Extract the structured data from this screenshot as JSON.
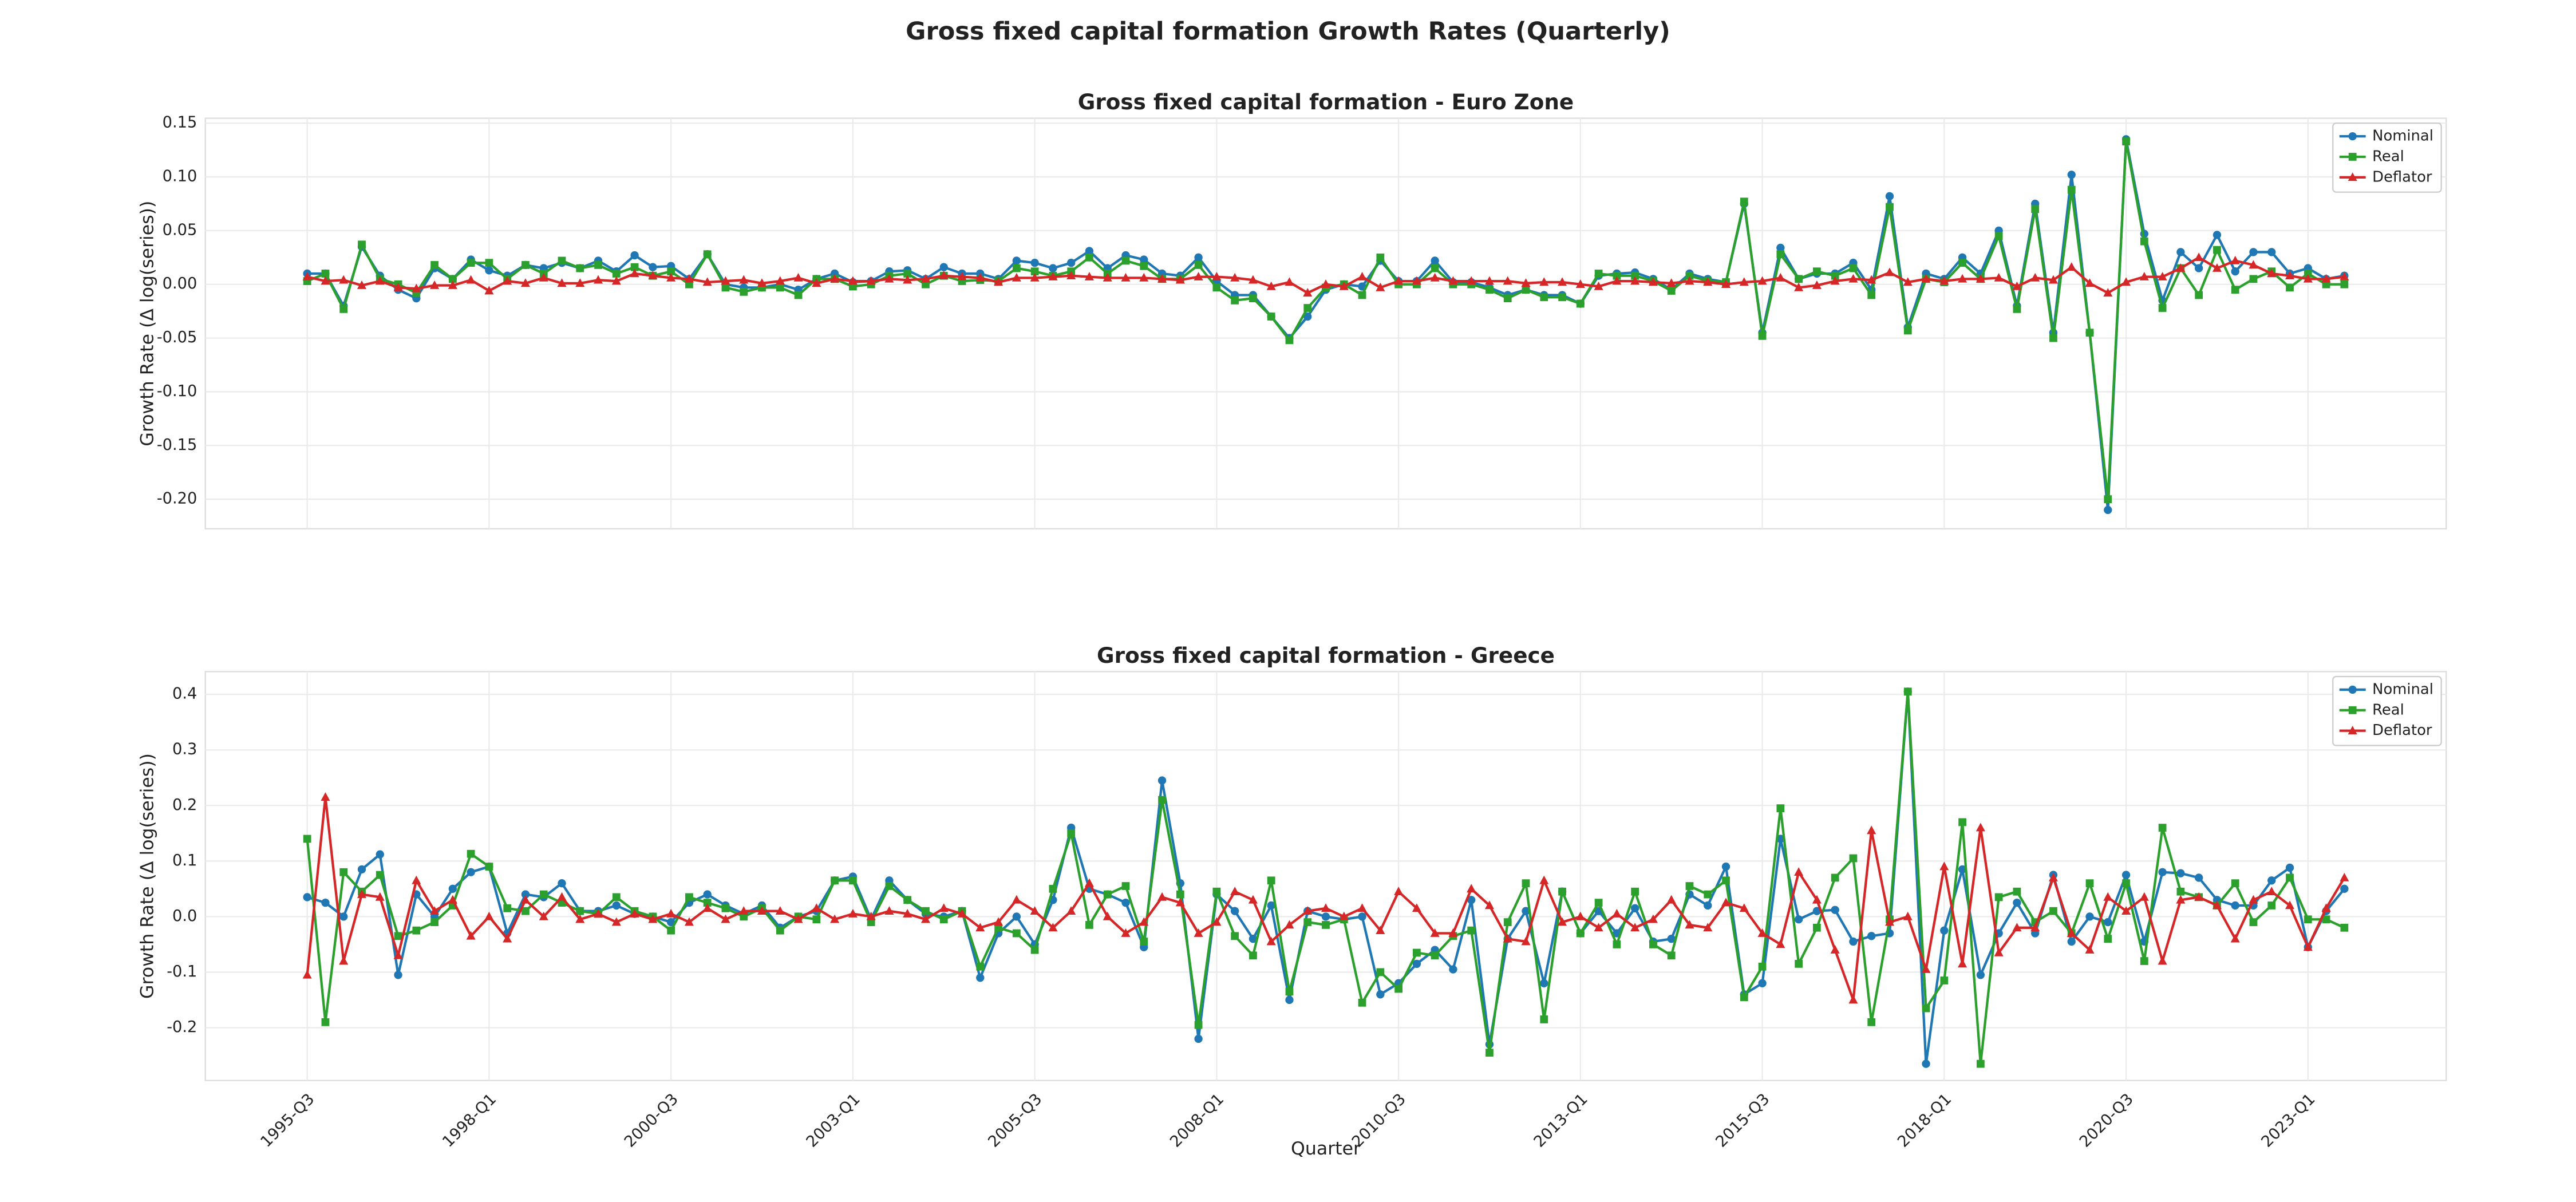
{
  "title": "Gross fixed capital formation Growth Rates (Quarterly)",
  "chart_data": [
    {
      "type": "line",
      "title": "Gross fixed capital formation - Euro Zone",
      "ylabel": "Growth Rate (Δ log(series))",
      "ylim": [
        -0.2275,
        0.1546
      ],
      "yticks": [
        {
          "value": -0.2,
          "label": "-0.20"
        },
        -0.15,
        {
          "value": -0.1,
          "label": "-0.10"
        },
        -0.05,
        {
          "value": 0,
          "label": "0.00"
        },
        0.05,
        {
          "value": 0.1,
          "label": "0.10"
        },
        0.15
      ],
      "grid": true,
      "legend": "upper right",
      "series": [
        {
          "name": "Nominal",
          "color": "#1f77b4",
          "marker": "circle",
          "values": [
            0.01,
            0.01,
            -0.02,
            0.035,
            0.008,
            -0.005,
            -0.013,
            0.015,
            0.005,
            0.023,
            0.013,
            0.008,
            0.018,
            0.015,
            0.02,
            0.015,
            0.022,
            0.012,
            0.027,
            0.016,
            0.017,
            0.005,
            0.028,
            0.0,
            -0.003,
            -0.003,
            0.0,
            -0.005,
            0.005,
            0.01,
            0.002,
            0.003,
            0.012,
            0.013,
            0.005,
            0.016,
            0.01,
            0.01,
            0.005,
            0.022,
            0.02,
            0.015,
            0.02,
            0.031,
            0.015,
            0.027,
            0.023,
            0.01,
            0.008,
            0.025,
            0.003,
            -0.01,
            -0.01,
            -0.03,
            -0.05,
            -0.03,
            -0.005,
            0.0,
            -0.002,
            0.022,
            0.003,
            0.003,
            0.022,
            0.002,
            0.002,
            -0.003,
            -0.01,
            -0.005,
            -0.01,
            -0.01,
            -0.018,
            0.008,
            0.01,
            0.011,
            0.005,
            -0.005,
            0.01,
            0.005,
            0.002,
            0.075,
            -0.045,
            0.034,
            0.005,
            0.01,
            0.01,
            0.02,
            -0.005,
            0.082,
            -0.04,
            0.01,
            0.005,
            0.025,
            0.01,
            0.05,
            -0.02,
            0.075,
            -0.045,
            0.102,
            -0.045,
            -0.21,
            0.135,
            0.047,
            -0.015,
            0.03,
            0.015,
            0.046,
            0.012,
            0.03,
            0.03,
            0.01,
            0.015,
            0.005,
            0.008
          ]
        },
        {
          "name": "Real",
          "color": "#2ca02c",
          "marker": "square",
          "values": [
            0.003,
            0.01,
            -0.023,
            0.037,
            0.005,
            0.0,
            -0.008,
            0.018,
            0.005,
            0.02,
            0.02,
            0.005,
            0.018,
            0.01,
            0.022,
            0.015,
            0.018,
            0.01,
            0.016,
            0.008,
            0.012,
            0.0,
            0.028,
            -0.003,
            -0.007,
            -0.003,
            -0.003,
            -0.01,
            0.005,
            0.005,
            -0.002,
            0.0,
            0.008,
            0.01,
            0.0,
            0.008,
            0.003,
            0.004,
            0.003,
            0.015,
            0.012,
            0.008,
            0.012,
            0.025,
            0.01,
            0.022,
            0.017,
            0.005,
            0.005,
            0.018,
            -0.003,
            -0.015,
            -0.013,
            -0.03,
            -0.052,
            -0.022,
            -0.003,
            0.0,
            -0.01,
            0.025,
            0.0,
            0.0,
            0.015,
            0.0,
            0.0,
            -0.005,
            -0.013,
            -0.005,
            -0.012,
            -0.012,
            -0.018,
            0.01,
            0.008,
            0.008,
            0.003,
            -0.006,
            0.008,
            0.003,
            0.002,
            0.077,
            -0.048,
            0.028,
            0.005,
            0.012,
            0.008,
            0.015,
            -0.01,
            0.072,
            -0.043,
            0.005,
            0.002,
            0.02,
            0.005,
            0.045,
            -0.023,
            0.07,
            -0.05,
            0.088,
            -0.045,
            -0.2,
            0.133,
            0.04,
            -0.022,
            0.015,
            -0.01,
            0.032,
            -0.005,
            0.005,
            0.012,
            -0.003,
            0.01,
            0.0,
            0.0
          ]
        },
        {
          "name": "Deflator",
          "color": "#d62728",
          "marker": "triangle",
          "values": [
            0.007,
            0.003,
            0.004,
            -0.001,
            0.003,
            -0.003,
            -0.004,
            -0.001,
            -0.001,
            0.004,
            -0.006,
            0.003,
            0.001,
            0.006,
            0.001,
            0.001,
            0.004,
            0.003,
            0.01,
            0.008,
            0.006,
            0.005,
            0.002,
            0.003,
            0.004,
            0.001,
            0.003,
            0.006,
            0.001,
            0.005,
            0.003,
            0.003,
            0.005,
            0.004,
            0.005,
            0.008,
            0.007,
            0.006,
            0.002,
            0.006,
            0.006,
            0.007,
            0.008,
            0.007,
            0.006,
            0.006,
            0.006,
            0.005,
            0.004,
            0.007,
            0.007,
            0.006,
            0.004,
            -0.002,
            0.002,
            -0.008,
            0.0,
            -0.002,
            0.007,
            -0.003,
            0.003,
            0.003,
            0.006,
            0.003,
            0.003,
            0.003,
            0.003,
            0.001,
            0.002,
            0.002,
            0.0,
            -0.002,
            0.003,
            0.003,
            0.002,
            0.001,
            0.003,
            0.002,
            0.0,
            0.002,
            0.003,
            0.006,
            -0.003,
            -0.001,
            0.003,
            0.005,
            0.004,
            0.011,
            0.002,
            0.005,
            0.003,
            0.005,
            0.005,
            0.006,
            -0.002,
            0.006,
            0.004,
            0.016,
            0.001,
            -0.008,
            0.002,
            0.007,
            0.007,
            0.015,
            0.025,
            0.015,
            0.022,
            0.018,
            0.01,
            0.008,
            0.005,
            0.005,
            0.007
          ]
        }
      ]
    },
    {
      "type": "line",
      "title": "Gross fixed capital formation - Greece",
      "ylabel": "Growth Rate (Δ log(series))",
      "xlabel": "Quarter",
      "categories": [
        "1995-Q3",
        null,
        null,
        null,
        null,
        null,
        null,
        null,
        null,
        null,
        "1998-Q1",
        null,
        null,
        null,
        null,
        null,
        null,
        null,
        null,
        null,
        "2000-Q3",
        null,
        null,
        null,
        null,
        null,
        null,
        null,
        null,
        null,
        "2003-Q1",
        null,
        null,
        null,
        null,
        null,
        null,
        null,
        null,
        null,
        "2005-Q3",
        null,
        null,
        null,
        null,
        null,
        null,
        null,
        null,
        null,
        "2008-Q1",
        null,
        null,
        null,
        null,
        null,
        null,
        null,
        null,
        null,
        "2010-Q3",
        null,
        null,
        null,
        null,
        null,
        null,
        null,
        null,
        null,
        "2013-Q1",
        null,
        null,
        null,
        null,
        null,
        null,
        null,
        null,
        null,
        "2015-Q3",
        null,
        null,
        null,
        null,
        null,
        null,
        null,
        null,
        null,
        "2018-Q1",
        null,
        null,
        null,
        null,
        null,
        null,
        null,
        null,
        null,
        "2020-Q3",
        null,
        null,
        null,
        null,
        null,
        null,
        null,
        null,
        null,
        "2023-Q1",
        null,
        null
      ],
      "ylim": [
        -0.295,
        0.441
      ],
      "yticks": [
        -0.2,
        -0.1,
        {
          "value": 0,
          "label": "0.0"
        },
        0.1,
        0.2,
        0.3,
        0.4
      ],
      "grid": true,
      "legend": "upper right",
      "series": [
        {
          "name": "Nominal",
          "color": "#1f77b4",
          "marker": "circle",
          "values": [
            0.035,
            0.025,
            0.0,
            0.085,
            0.112,
            -0.105,
            0.04,
            0.0,
            0.05,
            0.08,
            0.09,
            -0.03,
            0.04,
            0.035,
            0.06,
            0.01,
            0.01,
            0.02,
            0.005,
            0.0,
            -0.01,
            0.025,
            0.04,
            0.02,
            0.005,
            0.02,
            -0.02,
            0.0,
            0.01,
            0.065,
            0.072,
            -0.005,
            0.065,
            0.03,
            0.005,
            0.0,
            0.01,
            -0.11,
            -0.03,
            0.0,
            -0.05,
            0.03,
            0.16,
            0.05,
            0.04,
            0.025,
            -0.055,
            0.245,
            0.06,
            -0.22,
            0.04,
            0.01,
            -0.04,
            0.02,
            -0.15,
            0.01,
            0.0,
            -0.005,
            0.0,
            -0.14,
            -0.12,
            -0.085,
            -0.06,
            -0.095,
            0.03,
            -0.23,
            -0.04,
            0.01,
            -0.12,
            0.045,
            -0.03,
            0.01,
            -0.03,
            0.015,
            -0.045,
            -0.04,
            0.04,
            0.02,
            0.09,
            -0.14,
            -0.12,
            0.14,
            -0.005,
            0.01,
            0.012,
            -0.045,
            -0.035,
            -0.03,
            0.405,
            -0.265,
            -0.025,
            0.085,
            -0.105,
            -0.03,
            0.025,
            -0.03,
            0.075,
            -0.045,
            0.0,
            -0.01,
            0.075,
            -0.045,
            0.08,
            0.078,
            0.07,
            0.03,
            0.02,
            0.02,
            0.065,
            0.088,
            -0.055,
            0.01,
            0.05
          ]
        },
        {
          "name": "Real",
          "color": "#2ca02c",
          "marker": "square",
          "values": [
            0.14,
            -0.19,
            0.08,
            0.045,
            0.075,
            -0.035,
            -0.025,
            -0.01,
            0.02,
            0.113,
            0.09,
            0.015,
            0.01,
            0.04,
            0.025,
            0.01,
            0.005,
            0.035,
            0.01,
            0.0,
            -0.025,
            0.035,
            0.025,
            0.015,
            0.0,
            0.015,
            -0.025,
            0.0,
            -0.005,
            0.065,
            0.065,
            -0.01,
            0.055,
            0.03,
            0.01,
            -0.005,
            0.01,
            -0.09,
            -0.02,
            -0.03,
            -0.06,
            0.05,
            0.15,
            -0.015,
            0.04,
            0.055,
            -0.045,
            0.21,
            0.04,
            -0.195,
            0.045,
            -0.035,
            -0.07,
            0.065,
            -0.135,
            -0.01,
            -0.015,
            -0.005,
            -0.155,
            -0.1,
            -0.13,
            -0.065,
            -0.07,
            -0.035,
            -0.025,
            -0.245,
            -0.01,
            0.06,
            -0.185,
            0.045,
            -0.03,
            0.025,
            -0.05,
            0.045,
            -0.05,
            -0.07,
            0.055,
            0.04,
            0.065,
            -0.145,
            -0.09,
            0.195,
            -0.085,
            -0.02,
            0.07,
            0.105,
            -0.19,
            -0.005,
            0.405,
            -0.165,
            -0.115,
            0.17,
            -0.265,
            0.035,
            0.045,
            -0.01,
            0.01,
            -0.03,
            0.06,
            -0.04,
            0.06,
            -0.08,
            0.16,
            0.045,
            0.035,
            0.02,
            0.06,
            -0.01,
            0.02,
            0.07,
            -0.005,
            -0.005,
            -0.02
          ]
        },
        {
          "name": "Deflator",
          "color": "#d62728",
          "marker": "triangle",
          "values": [
            -0.105,
            0.215,
            -0.08,
            0.04,
            0.035,
            -0.07,
            0.065,
            0.01,
            0.03,
            -0.035,
            0.0,
            -0.04,
            0.03,
            0.0,
            0.035,
            -0.005,
            0.005,
            -0.01,
            0.005,
            -0.005,
            0.005,
            -0.01,
            0.015,
            -0.005,
            0.01,
            0.01,
            0.01,
            -0.005,
            0.015,
            -0.005,
            0.005,
            0.0,
            0.01,
            0.005,
            -0.005,
            0.015,
            0.005,
            -0.02,
            -0.01,
            0.03,
            0.01,
            -0.02,
            0.01,
            0.06,
            0.0,
            -0.03,
            -0.01,
            0.035,
            0.025,
            -0.03,
            -0.01,
            0.045,
            0.03,
            -0.045,
            -0.015,
            0.01,
            0.015,
            0.0,
            0.015,
            -0.025,
            0.045,
            0.015,
            -0.03,
            -0.03,
            0.05,
            0.02,
            -0.04,
            -0.045,
            0.065,
            -0.01,
            0.0,
            -0.02,
            0.005,
            -0.02,
            -0.005,
            0.03,
            -0.015,
            -0.02,
            0.025,
            0.015,
            -0.03,
            -0.05,
            0.08,
            0.03,
            -0.06,
            -0.15,
            0.155,
            -0.01,
            0.0,
            -0.095,
            0.09,
            -0.085,
            0.16,
            -0.065,
            -0.02,
            -0.02,
            0.07,
            -0.03,
            -0.06,
            0.035,
            0.01,
            0.035,
            -0.08,
            0.03,
            0.035,
            0.02,
            -0.04,
            0.03,
            0.045,
            0.02,
            -0.055,
            0.015,
            0.07
          ]
        }
      ]
    }
  ]
}
